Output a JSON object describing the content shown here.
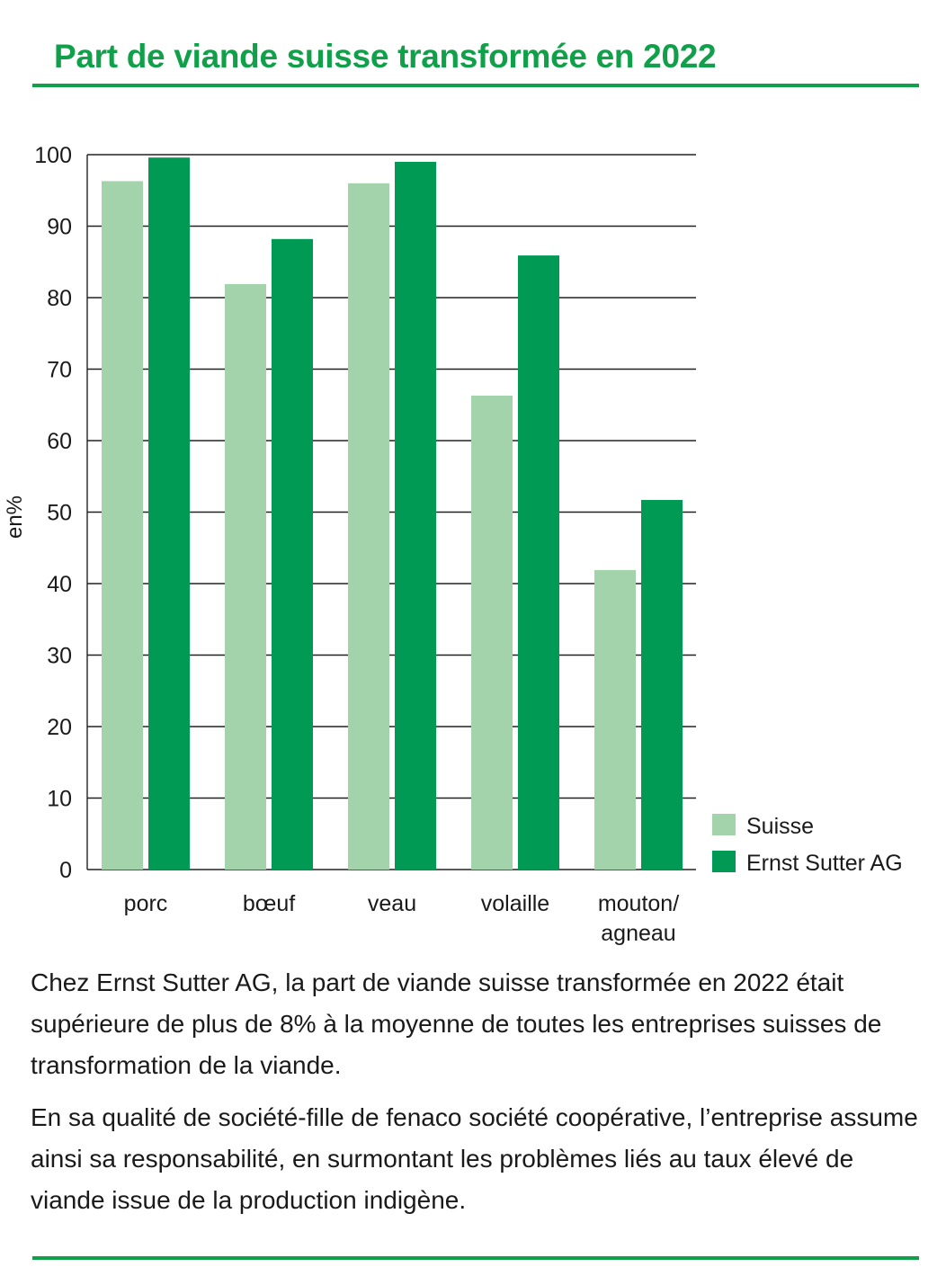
{
  "title": "Part de viande suisse transformée en 2022",
  "chart_data": {
    "type": "bar",
    "ylabel": "en%",
    "ylim": [
      0,
      100
    ],
    "yticks": [
      0,
      10,
      20,
      30,
      40,
      50,
      60,
      70,
      80,
      90,
      100
    ],
    "grid": true,
    "legend_position": "bottom-right",
    "categories": [
      [
        "porc"
      ],
      [
        "bœuf"
      ],
      [
        "veau"
      ],
      [
        "volaille"
      ],
      [
        "mouton/",
        "agneau"
      ]
    ],
    "series": [
      {
        "name": "Suisse",
        "color": "#a3d3ab",
        "values": [
          96.3,
          81.9,
          96.0,
          66.3,
          41.9
        ]
      },
      {
        "name": "Ernst Sutter AG",
        "color": "#009a55",
        "values": [
          99.6,
          88.2,
          99.0,
          85.9,
          51.7
        ]
      }
    ]
  },
  "text": {
    "para1": "Chez Ernst Sutter AG, la part de viande suisse transformée en 2022 était supérieure de plus de 8% à la moyenne de toutes les entreprises suisses de transformation de la viande.",
    "para2": "En sa qualité de société-fille de fenaco société coopérative, l’entreprise assume ainsi sa responsabilité, en surmontant les problèmes liés au taux élevé de viande issue de la production indigène."
  }
}
